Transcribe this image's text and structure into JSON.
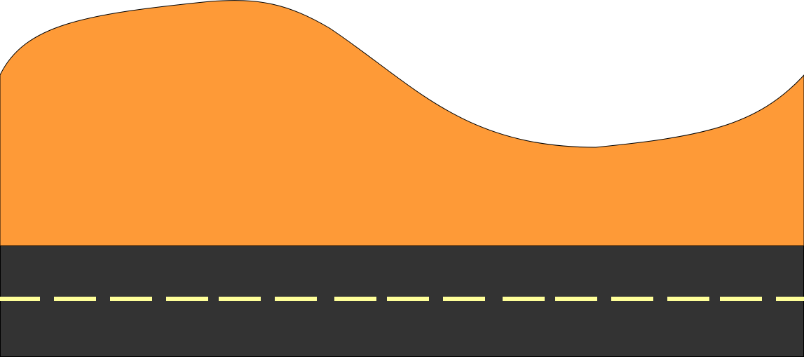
{
  "scene": {
    "sky_color": "#ffffff",
    "hill": {
      "fill_color": "#fe9a37",
      "outline_color": "#000000"
    },
    "road": {
      "asphalt_color": "#333333",
      "edge_color": "#000000",
      "center_line": {
        "style": "dashed",
        "color": "#ffff99"
      }
    }
  }
}
